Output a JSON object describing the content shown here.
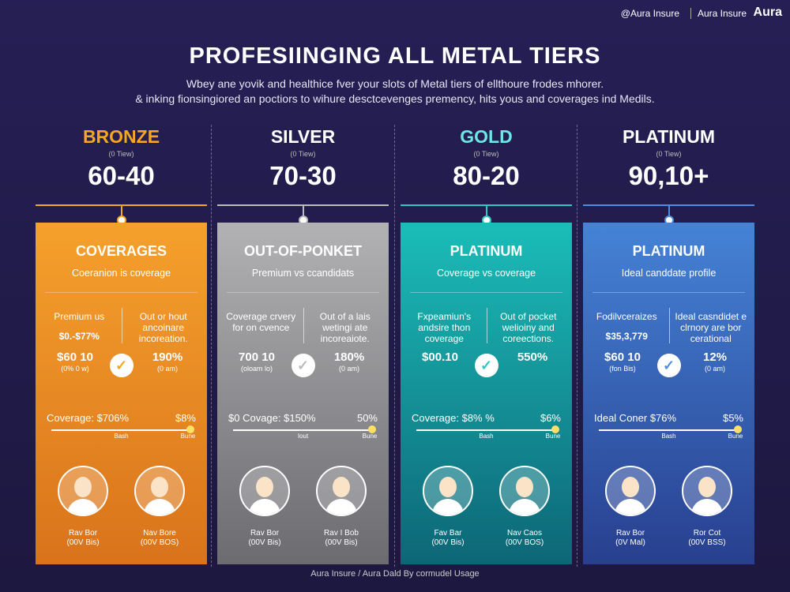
{
  "brand": {
    "handle": "@Aura Insure",
    "name": "Aura Insure",
    "logo": "Aura"
  },
  "title": "PROFESIINGING ALL METAL TIERS",
  "subtitle": [
    "Wbey ane yovik and healthice fver your slots of Metal tiers of ellthoure frodes mhorer.",
    "& inking fionsingiored an poctiors to wihure desctcevenges premency, hits yous and coverages ind Medils."
  ],
  "tiers": [
    {
      "name": "BRONZE",
      "note": "(0 Tiew)",
      "ratio": "60-40",
      "heading": "COVERAGES",
      "subheading": "Coeranion is coverage",
      "left_text": "Premium us",
      "left_value": "$0.-$77%",
      "right_text": "Out or hout ancoinare incoreation.",
      "stat_left": "$60 10",
      "stat_left_note": "(0% 0 w)",
      "stat_right": "190%",
      "stat_right_note": "(0 am)",
      "bar_label": "Coverage: $706%",
      "bar_value": "$8%",
      "bar_min": "Bash",
      "bar_max": "Bune",
      "people": [
        {
          "name": "Rav Bor",
          "detail": "(00V Bis)"
        },
        {
          "name": "Nav Bore",
          "detail": "(00V BOS)"
        }
      ]
    },
    {
      "name": "SILVER",
      "note": "(0 Tiew)",
      "ratio": "70-30",
      "heading": "OUT-OF-PONKET",
      "subheading": "Premium vs ccandidats",
      "left_text": "Coverage crvery for on cvence",
      "left_value": "",
      "right_text": "Out of a lais wetingi ate incoreaiote.",
      "stat_left": "700 10",
      "stat_left_note": "(oloam lo)",
      "stat_right": "180%",
      "stat_right_note": "(0 am)",
      "bar_label": "$0 Covage: $150%",
      "bar_value": "50%",
      "bar_min": "Iout",
      "bar_max": "Bune",
      "people": [
        {
          "name": "Rav Bor",
          "detail": "(00V Bis)"
        },
        {
          "name": "Rav I Bob",
          "detail": "(00V Bis)"
        }
      ]
    },
    {
      "name": "GOLD",
      "note": "(0 Tiew)",
      "ratio": "80-20",
      "heading": "PLATINUM",
      "subheading": "Coverage vs coverage",
      "left_text": "Fxpeamiun's andsire thon coverage",
      "left_value": "",
      "right_text": "Out of pocket welioiny and coreections.",
      "stat_left": "$00.10",
      "stat_left_note": "",
      "stat_right": "550%",
      "stat_right_note": "",
      "bar_label": "Coverage: $8% %",
      "bar_value": "$6%",
      "bar_min": "Bash",
      "bar_max": "Bune",
      "people": [
        {
          "name": "Fav Bar",
          "detail": "(00V Bis)"
        },
        {
          "name": "Nav Caos",
          "detail": "(00V BOS)"
        }
      ]
    },
    {
      "name": "PLATINUM",
      "note": "(0 Tiew)",
      "ratio": "90,10+",
      "heading": "PLATINUM",
      "subheading": "Ideal canddate profile",
      "left_text": "Fodilvceraizes",
      "left_value": "$35,3,779",
      "right_text": "Ideal casndidet e clrnory are bor cerational",
      "stat_left": "$60 10",
      "stat_left_note": "(fon Bis)",
      "stat_right": "12%",
      "stat_right_note": "(0 am)",
      "bar_label": "Ideal Coner $76%",
      "bar_value": "$5%",
      "bar_min": "Bash",
      "bar_max": "Bune",
      "people": [
        {
          "name": "Rav Bor",
          "detail": "(0V Mal)"
        },
        {
          "name": "Ror Cot",
          "detail": "(00V BSS)"
        }
      ]
    }
  ],
  "footer": "Aura Insure / Aura Dald By cormudel Usage"
}
